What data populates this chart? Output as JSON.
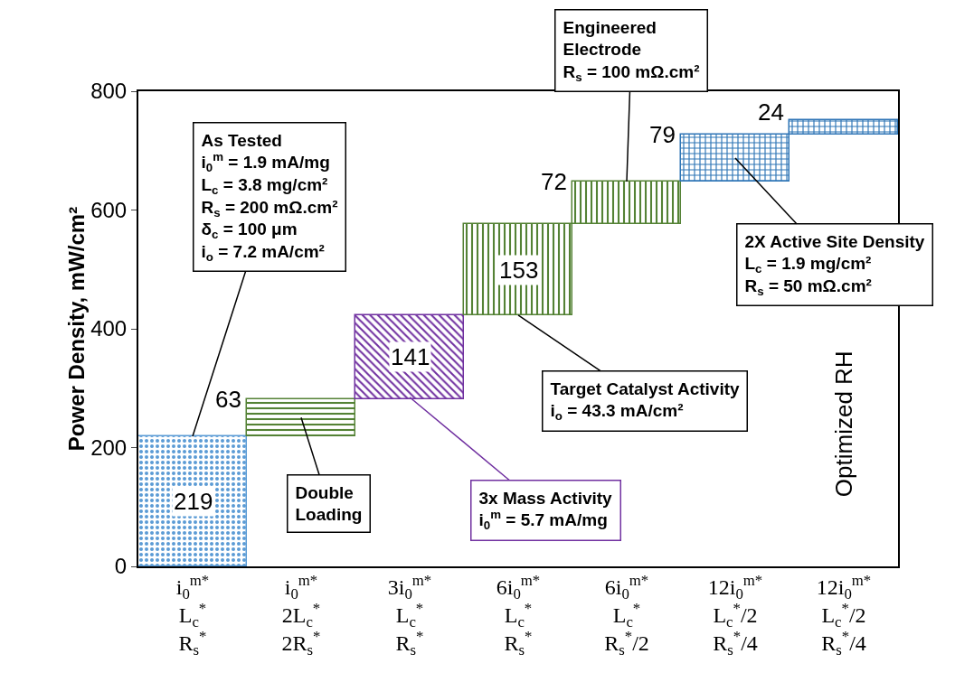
{
  "chart_data": {
    "type": "bar",
    "ylabel": "Power Density, mW/cm²",
    "categories": [
      "i$_{0}$$^{m*}$\nL$_{c}$$^{*}$\nR$_{s}$$^{*}$",
      "i$_{0}$$^{m*}$\n2L$_{c}$$^{*}$\n2R$_{s}$$^{*}$",
      "3i$_{0}$$^{m*}$\nL$_{c}$$^{*}$\nR$_{s}$$^{*}$",
      "6i$_{0}$$^{m*}$\nL$_{c}$$^{*}$\nR$_{s}$$^{*}$",
      "6i$_{0}$$^{m*}$\nL$_{c}$$^{*}$\nR$_{s}$$^{*}$/2",
      "12i$_{0}$$^{m*}$\nL$_{c}$$^{*}$/2\nR$_{s}$$^{*}$/4",
      "12i$_{0}$$^{m*}$\nL$_{c}$$^{*}$/2\nR$_{s}$$^{*}$/4"
    ],
    "values": [
      219,
      63,
      141,
      153,
      72,
      79,
      24
    ],
    "base": [
      0,
      219,
      282,
      423,
      576,
      648,
      727
    ],
    "colors": [
      "#5b9bd5",
      "#548235",
      "#7030a0",
      "#548235",
      "#548235",
      "#2e75b6",
      "#2e75b6"
    ],
    "data_labels": true,
    "ylim": [
      0,
      800
    ],
    "yticks": [
      0,
      200,
      400,
      600,
      800
    ],
    "grid": false,
    "annotations": [
      "Optimized RH",
      "As Tested\ni$_{0}$$^{m}$ = 1.9 mA/mg\nL$_{c}$ = 3.8 mg/cm²\nR$_{s}$ = 200 mΩ.cm²\nδ$_{c}$ = 100 μm\ni$_{o}$ = 7.2 mA/cm²",
      "Double\nLoading",
      "3x Mass Activity\ni$_{0}$$^{m}$ = 5.7 mA/mg",
      "Target Catalyst Activity\ni$_{o}$ = 43.3 mA/cm²",
      "Engineered\nElectrode\nR$_{s}$ = 100 mΩ.cm²",
      "2X Active Site Density\nL$_{c}$ = 1.9 mg/cm²\nR$_{s}$ = 50 mΩ.cm²"
    ]
  }
}
